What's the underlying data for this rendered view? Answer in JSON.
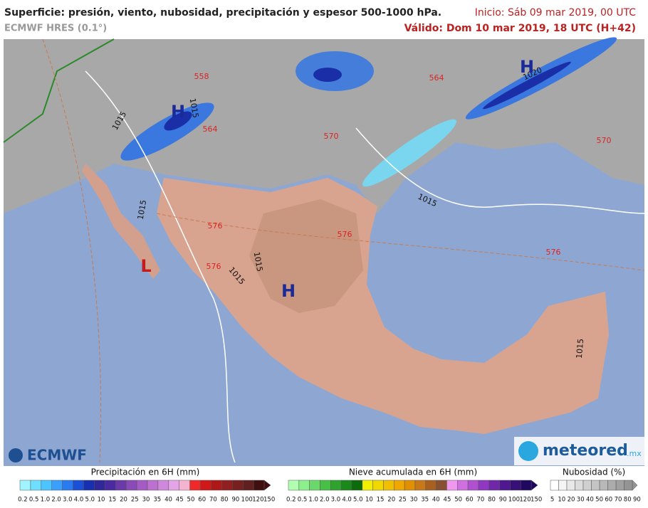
{
  "header": {
    "title": "Superficie: presión, viento, nubosidad, precipitación y espesor 500-1000 hPa.",
    "model": "ECMWF HRES (0.1°)",
    "start": "Inicio: Sáb 09 mar 2019, 00 UTC",
    "valid": "Válido: Dom 10 mar 2019, 18 UTC (H+42)"
  },
  "map": {
    "isobars": [
      "1015",
      "1015",
      "1015",
      "1015",
      "1015",
      "1015",
      "1015",
      "1020"
    ],
    "thickness": [
      "558",
      "564",
      "564",
      "570",
      "570",
      "576",
      "576",
      "576",
      "576"
    ],
    "centers": [
      "H",
      "H",
      "L",
      "H"
    ]
  },
  "logos": {
    "ecmwf": "ECMWF",
    "meteored": "meteored",
    "domain": ".mx"
  },
  "legends": [
    {
      "title": "Precipitación en 6H (mm)",
      "labels": [
        "0.2",
        "0.5",
        "1.0",
        "2.0",
        "3.0",
        "4.0",
        "5.0",
        "10",
        "15",
        "20",
        "25",
        "30",
        "35",
        "40",
        "45",
        "50",
        "60",
        "70",
        "80",
        "90",
        "100",
        "120",
        "150"
      ],
      "colors": [
        "#9ff4ff",
        "#6ee0ff",
        "#4cc4ff",
        "#3aa0ff",
        "#2a7af0",
        "#1a50d8",
        "#1730b0",
        "#30289a",
        "#4a2aa0",
        "#6a3aa8",
        "#8a4ab8",
        "#a45cc4",
        "#bc70d0",
        "#d088dc",
        "#e4a4e8",
        "#f4b4d0",
        "#f02828",
        "#d01818",
        "#b01818",
        "#902020",
        "#782020",
        "#602020",
        "#401010"
      ]
    },
    {
      "title": "Nieve acumulada en 6H (mm)",
      "labels": [
        "0.2",
        "0.5",
        "1.0",
        "2.0",
        "3.0",
        "4.0",
        "5.0",
        "10",
        "15",
        "20",
        "25",
        "30",
        "35",
        "40",
        "45",
        "50",
        "60",
        "70",
        "80",
        "90",
        "100",
        "120",
        "150"
      ],
      "colors": [
        "#b0ffb0",
        "#8cf08c",
        "#6ad86a",
        "#48c048",
        "#2ea42e",
        "#1a881a",
        "#0c6c0c",
        "#f0f000",
        "#f0d800",
        "#f0c000",
        "#f0a800",
        "#e09000",
        "#c87818",
        "#a86020",
        "#885030",
        "#f098f0",
        "#d070e0",
        "#b050d0",
        "#9038c0",
        "#7028a8",
        "#501890",
        "#381078",
        "#200860"
      ]
    },
    {
      "title": "Nubosidad (%)",
      "labels": [
        "5",
        "10",
        "20",
        "30",
        "40",
        "50",
        "60",
        "70",
        "80",
        "90"
      ],
      "colors": [
        "#ffffff",
        "#f4f4f4",
        "#e8e8e8",
        "#dcdcdc",
        "#d0d0d0",
        "#c4c4c4",
        "#b8b8b8",
        "#acacac",
        "#a0a0a0",
        "#949494"
      ]
    }
  ]
}
